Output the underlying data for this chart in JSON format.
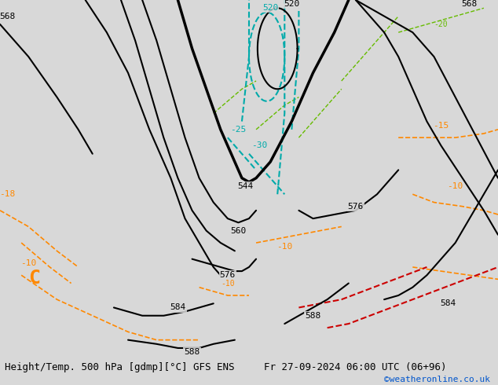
{
  "title_left": "Height/Temp. 500 hPa [gdmp][°C] GFS ENS",
  "title_right": "Fr 27-09-2024 06:00 UTC (06+96)",
  "watermark": "©weatheronline.co.uk",
  "fig_width": 6.34,
  "fig_height": 4.9,
  "dpi": 100,
  "map_bg": "#d8d8d8",
  "land_green": "#c8e6a0",
  "land_gray": "#b0b0b0",
  "bottom_bg": "#f0f0f0",
  "title_fontsize": 9,
  "watermark_color": "#0055cc",
  "c_black": "#000000",
  "c_cyan": "#00aaaa",
  "c_orange": "#ff8800",
  "c_red": "#cc0000",
  "c_green": "#66bb00",
  "xlim": [
    -28,
    42
  ],
  "ylim": [
    30,
    74
  ]
}
